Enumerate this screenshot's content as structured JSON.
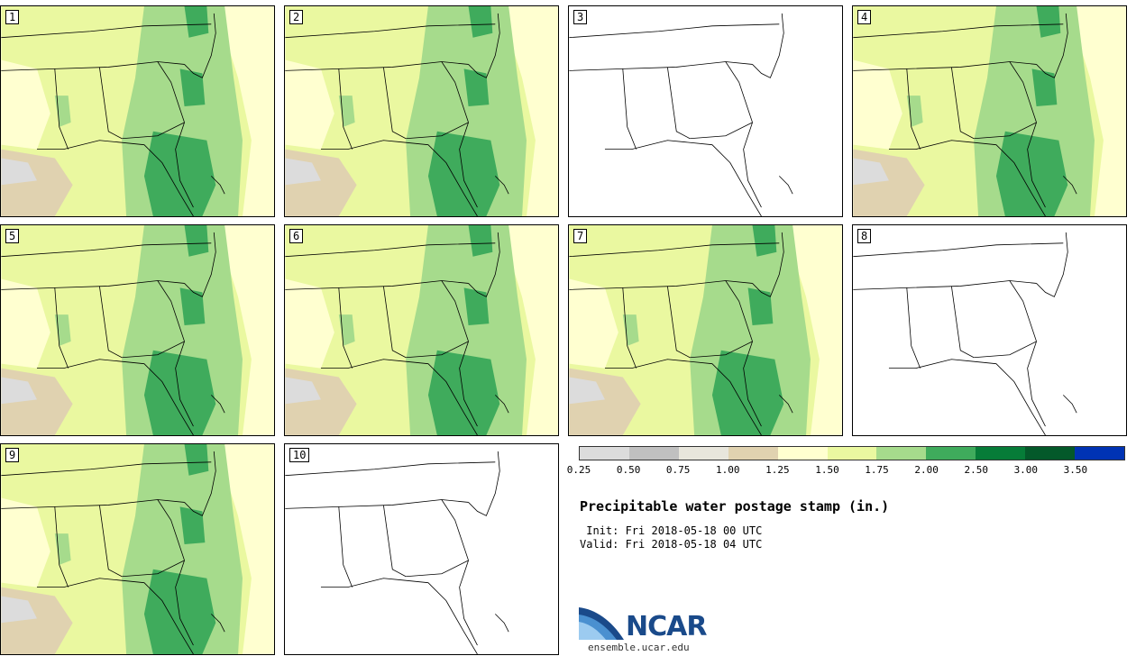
{
  "panels": [
    {
      "label": "1",
      "has_data": true
    },
    {
      "label": "2",
      "has_data": true
    },
    {
      "label": "3",
      "has_data": false
    },
    {
      "label": "4",
      "has_data": true
    },
    {
      "label": "5",
      "has_data": true
    },
    {
      "label": "6",
      "has_data": true
    },
    {
      "label": "7",
      "has_data": true
    },
    {
      "label": "8",
      "has_data": false
    },
    {
      "label": "9",
      "has_data": true
    },
    {
      "label": "10",
      "has_data": false
    }
  ],
  "colorbar": {
    "colors": [
      "#dcdcdc",
      "#c0c0c0",
      "#e8e6dc",
      "#e0d2b0",
      "#ffffd0",
      "#eaf8a0",
      "#a6db8c",
      "#3fab5c",
      "#067c38",
      "#04592a",
      "#0033b4"
    ],
    "tick_labels": [
      "0.25",
      "0.50",
      "0.75",
      "1.00",
      "1.25",
      "1.50",
      "1.75",
      "2.00",
      "2.50",
      "3.00",
      "3.50"
    ]
  },
  "title": "Precipitable water postage stamp (in.)",
  "init": " Init: Fri 2018-05-18 00 UTC",
  "valid": "Valid: Fri 2018-05-18 04 UTC",
  "logo": {
    "text": "NCAR",
    "url": "ensemble.ucar.edu"
  }
}
